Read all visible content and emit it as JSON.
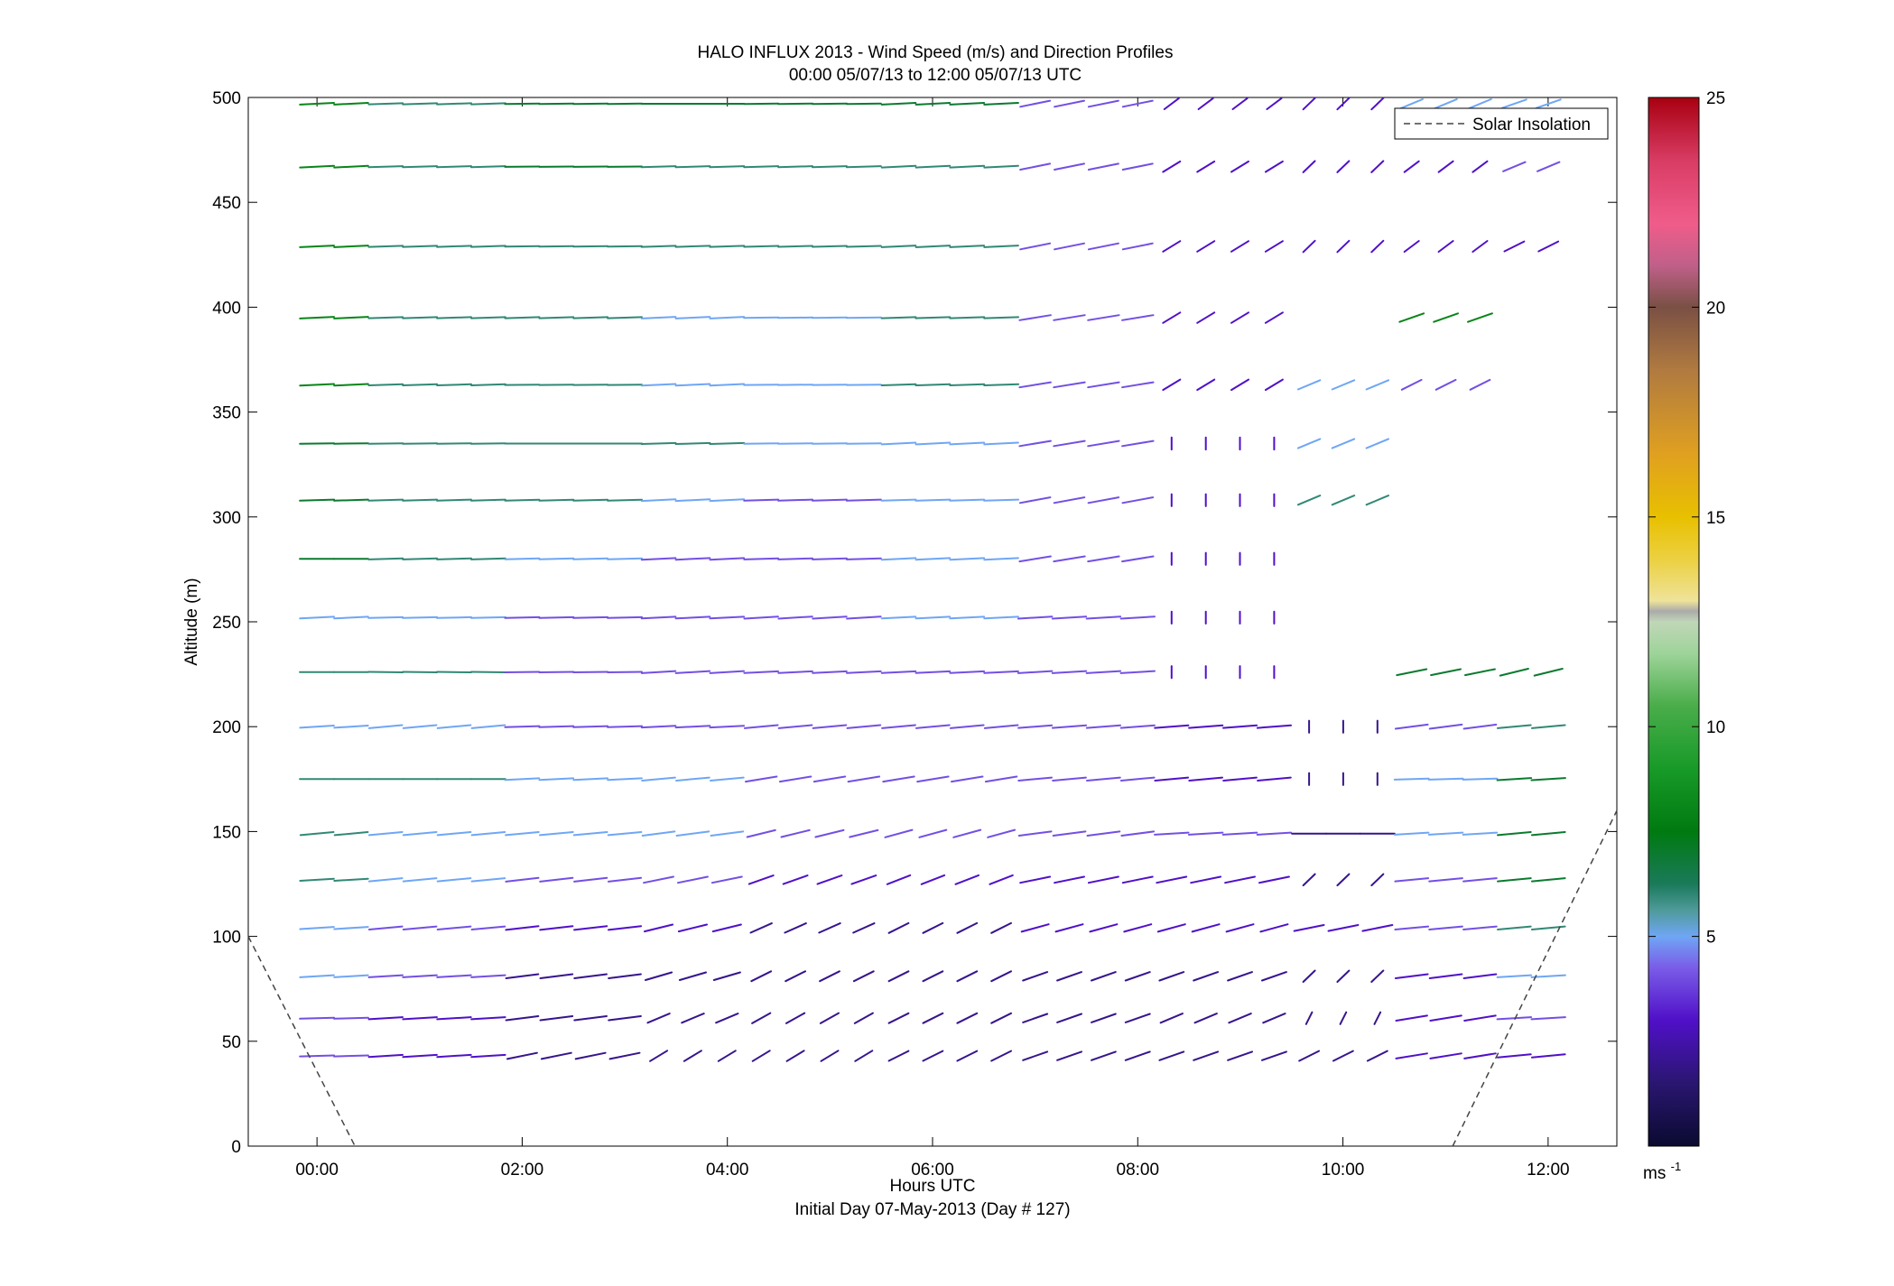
{
  "chart_data": {
    "type": "vector-field",
    "title": "HALO INFLUX 2013 - Wind Speed (m/s) and Direction Profiles",
    "subtitle": "00:00 05/07/13 to 12:00 05/07/13  UTC",
    "xlabel": "Hours UTC",
    "xlabel2": "Initial Day 07-May-2013 (Day # 127)",
    "ylabel": "Altitude (m)",
    "x_range_hours": [
      -0.67,
      12.67
    ],
    "ylim": [
      0,
      500
    ],
    "x_ticks": [
      {
        "value": 0,
        "label": "00:00"
      },
      {
        "value": 2,
        "label": "02:00"
      },
      {
        "value": 4,
        "label": "04:00"
      },
      {
        "value": 6,
        "label": "06:00"
      },
      {
        "value": 8,
        "label": "08:00"
      },
      {
        "value": 10,
        "label": "10:00"
      },
      {
        "value": 12,
        "label": "12:00"
      }
    ],
    "y_ticks": [
      0,
      50,
      100,
      150,
      200,
      250,
      300,
      350,
      400,
      450,
      500
    ],
    "colorbar": {
      "range": [
        0,
        25
      ],
      "ticks": [
        5,
        10,
        15,
        20,
        25
      ],
      "unit_label": "ms",
      "unit_exponent": "-1"
    },
    "legend": {
      "position": "top-right",
      "entries": [
        "Solar Insolation"
      ]
    },
    "solar_insolation": [
      {
        "name": "left",
        "points": [
          [
            -0.67,
            100
          ],
          [
            0.37,
            0
          ]
        ]
      },
      {
        "name": "right",
        "points": [
          [
            11.07,
            0
          ],
          [
            12.67,
            160
          ]
        ]
      }
    ],
    "time_step_hours": 0.3333,
    "altitudes_m": [
      43,
      61,
      81,
      104,
      127,
      149,
      175,
      200,
      226,
      252,
      280,
      308,
      335,
      363,
      395,
      429,
      467,
      497
    ],
    "profiles": [
      {
        "t0": 0.0,
        "speed": [
          4,
          4,
          5,
          5,
          6,
          6,
          6,
          5,
          6,
          5,
          7,
          7,
          7,
          8,
          8,
          8,
          8,
          8
        ],
        "dir": [
          265,
          265,
          260,
          260,
          260,
          255,
          270,
          260,
          270,
          262,
          270,
          265,
          268,
          262,
          262,
          262,
          262,
          262
        ]
      },
      {
        "t0": 0.67,
        "speed": [
          3,
          3,
          4,
          4,
          5,
          5,
          6,
          5,
          6,
          5,
          6,
          6,
          6,
          6,
          6,
          6,
          6,
          6
        ],
        "dir": [
          260,
          260,
          260,
          255,
          255,
          255,
          270,
          255,
          272,
          266,
          265,
          265,
          268,
          265,
          265,
          265,
          265,
          265
        ]
      },
      {
        "t0": 2.0,
        "speed": [
          2,
          2,
          2,
          3,
          4,
          5,
          5,
          4,
          4,
          4,
          5,
          6,
          6,
          6,
          6,
          6,
          7,
          7
        ],
        "dir": [
          240,
          250,
          250,
          252,
          252,
          255,
          262,
          265,
          268,
          266,
          266,
          266,
          270,
          268,
          265,
          268,
          268,
          268
        ]
      },
      {
        "t0": 3.33,
        "speed": [
          2,
          2,
          2,
          3,
          4,
          5,
          5,
          4,
          4,
          4,
          4,
          5,
          6,
          5,
          5,
          6,
          6,
          7
        ],
        "dir": [
          210,
          220,
          230,
          235,
          240,
          250,
          255,
          262,
          260,
          262,
          262,
          262,
          265,
          262,
          262,
          265,
          265,
          270
        ]
      },
      {
        "t0": 4.33,
        "speed": [
          2,
          2,
          2,
          2,
          3,
          4,
          4,
          4,
          4,
          4,
          4,
          4,
          5,
          5,
          5,
          6,
          6,
          7
        ],
        "dir": [
          210,
          212,
          215,
          218,
          225,
          235,
          245,
          255,
          262,
          260,
          265,
          265,
          268,
          268,
          268,
          266,
          265,
          268
        ]
      },
      {
        "t0": 5.67,
        "speed": [
          2,
          2,
          2,
          2,
          3,
          4,
          4,
          4,
          4,
          5,
          5,
          5,
          5,
          6,
          6,
          6,
          6,
          7
        ],
        "dir": [
          215,
          215,
          215,
          215,
          222,
          232,
          245,
          255,
          262,
          262,
          262,
          265,
          262,
          265,
          265,
          262,
          262,
          262
        ]
      },
      {
        "t0": 7.0,
        "speed": [
          2,
          2,
          2,
          3,
          3,
          4,
          4,
          4,
          4,
          4,
          4,
          4,
          4,
          4,
          4,
          4,
          4,
          4
        ],
        "dir": [
          225,
          225,
          225,
          232,
          240,
          250,
          255,
          258,
          260,
          260,
          245,
          242,
          245,
          245,
          245,
          240,
          240,
          240
        ]
      },
      {
        "t0": 8.33,
        "speed": [
          2,
          2,
          2,
          3,
          3,
          4,
          3,
          3,
          3,
          3,
          3,
          3,
          3,
          3,
          3,
          3,
          3,
          3
        ],
        "dir": [
          225,
          220,
          225,
          232,
          240,
          260,
          255,
          258,
          0,
          0,
          0,
          0,
          0,
          210,
          210,
          210,
          210,
          205
        ]
      },
      {
        "t0": 9.67,
        "speed": [
          2,
          2,
          2,
          3,
          2,
          2,
          2,
          2,
          0,
          0,
          0,
          6,
          5,
          5,
          0,
          3,
          3,
          3
        ],
        "dir": [
          215,
          190,
          200,
          240,
          200,
          270,
          0,
          0,
          0,
          0,
          0,
          220,
          220,
          220,
          0,
          200,
          200,
          200
        ]
      },
      {
        "t0": 10.67,
        "speed": [
          3,
          3,
          3,
          4,
          4,
          5,
          5,
          4,
          7,
          0,
          0,
          0,
          0,
          4,
          8,
          3,
          3,
          5
        ],
        "dir": [
          245,
          245,
          250,
          255,
          255,
          260,
          265,
          250,
          240,
          0,
          0,
          0,
          0,
          215,
          225,
          205,
          205,
          220
        ]
      },
      {
        "t0": 11.67,
        "speed": [
          3,
          4,
          5,
          6,
          7,
          7,
          7,
          6,
          7,
          0,
          0,
          0,
          0,
          0,
          0,
          3,
          4,
          5
        ],
        "dir": [
          255,
          260,
          260,
          255,
          255,
          255,
          260,
          255,
          235,
          0,
          0,
          0,
          0,
          0,
          0,
          215,
          220,
          225
        ]
      }
    ]
  }
}
